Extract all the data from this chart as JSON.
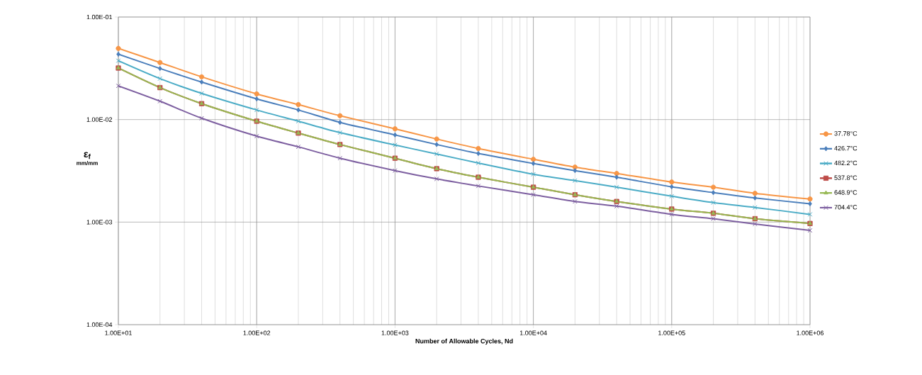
{
  "chart_data": {
    "type": "line",
    "xlabel": "Number of Allowable Cycles, Nd",
    "ylabel": "ε$_{f}$",
    "annotations": [
      "mm/mm"
    ],
    "x": [
      10,
      20,
      40,
      100,
      200,
      400,
      1000,
      2000,
      4000,
      10000,
      20000,
      40000,
      100000,
      200000,
      400000,
      1000000
    ],
    "series": [
      {
        "name": "37.78°C",
        "color": "#f79646",
        "marker": "circle",
        "values": [
          0.0494,
          0.036,
          0.0261,
          0.0178,
          0.014,
          0.0109,
          0.00813,
          0.00646,
          0.00522,
          0.0041,
          0.00344,
          0.00298,
          0.00246,
          0.00219,
          0.00191,
          0.00168
        ]
      },
      {
        "name": "426.7°C",
        "color": "#4a7ebb",
        "marker": "diamond",
        "values": [
          0.0434,
          0.0315,
          0.0232,
          0.0159,
          0.0124,
          0.00938,
          0.00708,
          0.00571,
          0.00467,
          0.00373,
          0.00318,
          0.00274,
          0.00221,
          0.00194,
          0.00172,
          0.00151
        ]
      },
      {
        "name": "482.2°C",
        "color": "#4bacc6",
        "marker": "cross",
        "values": [
          0.0375,
          0.0251,
          0.018,
          0.0124,
          0.00964,
          0.00746,
          0.00565,
          0.00462,
          0.00377,
          0.00293,
          0.00254,
          0.00219,
          0.00179,
          0.00155,
          0.00139,
          0.00119
        ]
      },
      {
        "name": "537.8°C",
        "color": "#be4b48",
        "marker": "square",
        "values": [
          0.0318,
          0.0205,
          0.0143,
          0.00964,
          0.00738,
          0.00571,
          0.0042,
          0.00332,
          0.00274,
          0.00219,
          0.00185,
          0.00159,
          0.00134,
          0.00122,
          0.00108,
          0.00097
        ]
      },
      {
        "name": "648.9°C",
        "color": "#98b954",
        "marker": "triangle",
        "values": [
          0.0318,
          0.0205,
          0.0143,
          0.00964,
          0.00738,
          0.00571,
          0.0042,
          0.00332,
          0.00274,
          0.00219,
          0.00185,
          0.00159,
          0.00134,
          0.00122,
          0.00108,
          0.00097
        ]
      },
      {
        "name": "704.4°C",
        "color": "#7d5fa0",
        "marker": "cross",
        "values": [
          0.0213,
          0.0151,
          0.0103,
          0.00689,
          0.00542,
          0.0042,
          0.00318,
          0.00264,
          0.00225,
          0.00185,
          0.00159,
          0.00143,
          0.00119,
          0.00108,
          0.00096,
          0.00083
        ]
      }
    ],
    "xlim": [
      10,
      1000000
    ],
    "ylim": [
      0.0001,
      0.1
    ],
    "xticks": [
      {
        "value": 10,
        "label": "1.00E+01"
      },
      {
        "value": 100,
        "label": "1.00E+02"
      },
      {
        "value": 1000,
        "label": "1.00E+03"
      },
      {
        "value": 10000,
        "label": "1.00E+04"
      },
      {
        "value": 100000,
        "label": "1.00E+05"
      },
      {
        "value": 1000000,
        "label": "1.00E+06"
      }
    ],
    "yticks": [
      {
        "value": 0.0001,
        "label": "1.00E-04"
      },
      {
        "value": 0.001,
        "label": "1.00E-03"
      },
      {
        "value": 0.01,
        "label": "1.00E-02"
      },
      {
        "value": 0.1,
        "label": "1.00E-01"
      }
    ],
    "log": "xy",
    "grid": true,
    "legend": "right"
  }
}
